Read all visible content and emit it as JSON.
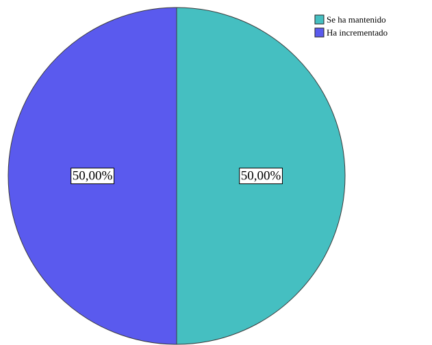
{
  "chart_data": {
    "type": "pie",
    "categories": [
      "Se ha mantenido",
      "Ha incrementado"
    ],
    "values": [
      50,
      50
    ],
    "data_labels": [
      "50,00%",
      "50,00%"
    ],
    "colors": [
      "#45BFC1",
      "#5A5AEE"
    ],
    "legend": {
      "placement": "top-right",
      "entries": [
        "Se ha mantenido",
        "Ha incrementado"
      ]
    },
    "title": ""
  }
}
